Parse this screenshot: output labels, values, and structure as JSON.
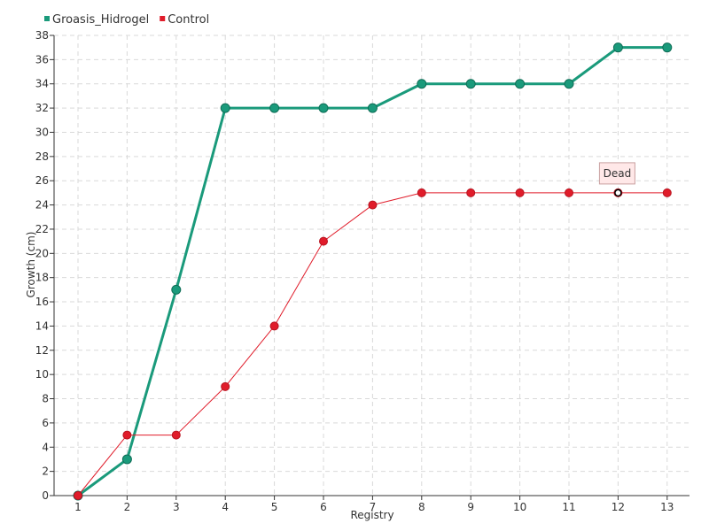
{
  "chart_data": {
    "type": "line",
    "title": "",
    "xlabel": "Registry",
    "ylabel": "Growth (cm)",
    "categories": [
      "1",
      "2",
      "3",
      "4",
      "5",
      "6",
      "7",
      "8",
      "9",
      "10",
      "11",
      "12",
      "13"
    ],
    "ylim": [
      0,
      38
    ],
    "ytick_step": 2,
    "grid": true,
    "legend_position": "top-left",
    "series": [
      {
        "name": "Groasis_Hidrogel",
        "color": "#1a9a7b",
        "values": [
          0,
          3,
          17,
          32,
          32,
          32,
          32,
          34,
          34,
          34,
          34,
          37,
          37
        ]
      },
      {
        "name": "Control",
        "color": "#e01c2a",
        "values": [
          0,
          5,
          5,
          9,
          14,
          21,
          24,
          25,
          25,
          25,
          25,
          25,
          25
        ]
      }
    ],
    "annotations": [
      {
        "text": "Dead",
        "series": "Control",
        "category": "12",
        "value": 25
      }
    ]
  }
}
